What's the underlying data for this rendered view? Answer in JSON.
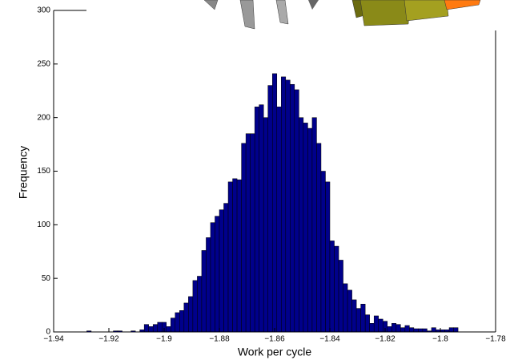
{
  "chart_data": {
    "type": "histogram",
    "xlabel": "Work per cycle",
    "ylabel": "Frequency",
    "color": "#00008b",
    "edgecolor": "#000000",
    "bins": [
      -1.928,
      -1.9264,
      -1.9248,
      -1.9232,
      -1.9216,
      -1.92,
      -1.9184,
      -1.9168,
      -1.9152,
      -1.9136,
      -1.912,
      -1.9104,
      -1.9088,
      -1.9072,
      -1.9056,
      -1.904,
      -1.9024,
      -1.9008,
      -1.8992,
      -1.8976,
      -1.896,
      -1.8944,
      -1.8928,
      -1.8912,
      -1.8896,
      -1.888,
      -1.8864,
      -1.8848,
      -1.8832,
      -1.8816,
      -1.88,
      -1.8784,
      -1.8768,
      -1.8752,
      -1.8736,
      -1.872,
      -1.8704,
      -1.8688,
      -1.8672,
      -1.8656,
      -1.864,
      -1.8624,
      -1.8608,
      -1.8592,
      -1.8576,
      -1.856,
      -1.8544,
      -1.8528,
      -1.8512,
      -1.8496,
      -1.848,
      -1.8464,
      -1.8448,
      -1.8432,
      -1.8416,
      -1.84,
      -1.8384,
      -1.8368,
      -1.8352,
      -1.8336,
      -1.832,
      -1.8304,
      -1.8288,
      -1.8272,
      -1.8256,
      -1.824,
      -1.8224,
      -1.8208,
      -1.8192,
      -1.8176,
      -1.816,
      -1.8144,
      -1.8128,
      -1.8112,
      -1.8096,
      -1.808,
      -1.8064,
      -1.8048,
      -1.8032,
      -1.8016,
      -1.8,
      -1.7984,
      -1.7968,
      -1.7952,
      -1.7936
    ],
    "values": [
      1,
      0,
      0,
      0,
      0,
      0,
      1,
      1,
      0,
      0,
      1,
      0,
      2,
      7,
      5,
      7,
      9,
      9,
      5,
      13,
      18,
      20,
      27,
      33,
      48,
      52,
      76,
      88,
      102,
      108,
      114,
      120,
      140,
      143,
      142,
      176,
      185,
      185,
      210,
      212,
      200,
      230,
      241,
      210,
      238,
      235,
      231,
      226,
      200,
      195,
      190,
      200,
      176,
      150,
      140,
      85,
      80,
      67,
      45,
      39,
      30,
      22,
      26,
      16,
      8,
      15,
      12,
      10,
      5,
      8,
      7,
      4,
      6,
      4,
      3,
      3,
      3,
      1,
      4,
      2,
      2,
      2,
      4,
      4
    ],
    "xlim": [
      -1.94,
      -1.78
    ],
    "xticks": [
      {
        "value": -1.94,
        "label": "−1.94"
      },
      {
        "value": -1.92,
        "label": "−1.92"
      },
      {
        "value": -1.9,
        "label": "−1.9"
      },
      {
        "value": -1.88,
        "label": "−1.88"
      },
      {
        "value": -1.86,
        "label": "−1.86"
      },
      {
        "value": -1.84,
        "label": "−1.84"
      },
      {
        "value": -1.82,
        "label": "−1.82"
      },
      {
        "value": -1.8,
        "label": "−1.8"
      },
      {
        "value": -1.78,
        "label": "−1.78"
      }
    ],
    "ylim": [
      0,
      300
    ],
    "yticks": [
      0,
      50,
      100,
      150,
      200,
      250,
      300
    ]
  }
}
